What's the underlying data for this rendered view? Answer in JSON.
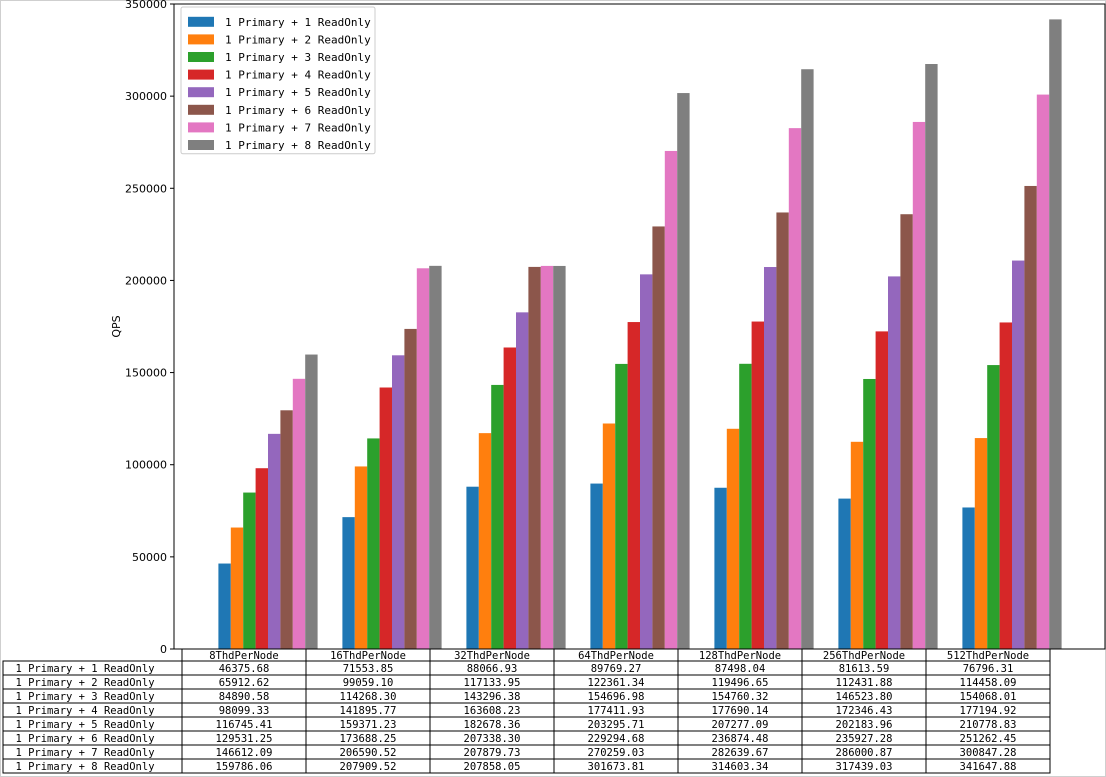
{
  "colors": {
    "series": [
      "#1f77b4",
      "#ff7f0e",
      "#2ca02c",
      "#d62728",
      "#9467bd",
      "#8c564b",
      "#e377c2",
      "#7f7f7f"
    ]
  },
  "chart_data": {
    "type": "bar",
    "title": "",
    "xlabel": "",
    "ylabel": "QPS",
    "ylim": [
      0,
      350000
    ],
    "yticks": [
      "0",
      "50000",
      "100000",
      "150000",
      "200000",
      "250000",
      "300000",
      "350000"
    ],
    "grid": false,
    "legend_position": "top-left",
    "table_below": true,
    "categories": [
      "8ThdPerNode",
      "16ThdPerNode",
      "32ThdPerNode",
      "64ThdPerNode",
      "128ThdPerNode",
      "256ThdPerNode",
      "512ThdPerNode"
    ],
    "series": [
      {
        "name": "1 Primary + 1 ReadOnly",
        "values": [
          46375.68,
          71553.85,
          88066.93,
          89769.27,
          87498.04,
          81613.59,
          76796.31
        ],
        "labels": [
          "46375.68",
          "71553.85",
          "88066.93",
          "89769.27",
          "87498.04",
          "81613.59",
          "76796.31"
        ]
      },
      {
        "name": "1 Primary + 2 ReadOnly",
        "values": [
          65912.62,
          99059.1,
          117133.95,
          122361.34,
          119496.65,
          112431.88,
          114458.09
        ],
        "labels": [
          "65912.62",
          "99059.10",
          "117133.95",
          "122361.34",
          "119496.65",
          "112431.88",
          "114458.09"
        ]
      },
      {
        "name": "1 Primary + 3 ReadOnly",
        "values": [
          84890.58,
          114268.3,
          143296.38,
          154696.98,
          154760.32,
          146523.8,
          154068.01
        ],
        "labels": [
          "84890.58",
          "114268.30",
          "143296.38",
          "154696.98",
          "154760.32",
          "146523.80",
          "154068.01"
        ]
      },
      {
        "name": "1 Primary + 4 ReadOnly",
        "values": [
          98099.33,
          141895.77,
          163608.23,
          177411.93,
          177690.14,
          172346.43,
          177194.92
        ],
        "labels": [
          "98099.33",
          "141895.77",
          "163608.23",
          "177411.93",
          "177690.14",
          "172346.43",
          "177194.92"
        ]
      },
      {
        "name": "1 Primary + 5 ReadOnly",
        "values": [
          116745.41,
          159371.23,
          182678.36,
          203295.71,
          207277.09,
          202183.96,
          210778.83
        ],
        "labels": [
          "116745.41",
          "159371.23",
          "182678.36",
          "203295.71",
          "207277.09",
          "202183.96",
          "210778.83"
        ]
      },
      {
        "name": "1 Primary + 6 ReadOnly",
        "values": [
          129531.25,
          173688.25,
          207338.3,
          229294.68,
          236874.48,
          235927.28,
          251262.45
        ],
        "labels": [
          "129531.25",
          "173688.25",
          "207338.30",
          "229294.68",
          "236874.48",
          "235927.28",
          "251262.45"
        ]
      },
      {
        "name": "1 Primary + 7 ReadOnly",
        "values": [
          146612.09,
          206590.52,
          207879.73,
          270259.03,
          282639.67,
          286000.87,
          300847.28
        ],
        "labels": [
          "146612.09",
          "206590.52",
          "207879.73",
          "270259.03",
          "282639.67",
          "286000.87",
          "300847.28"
        ]
      },
      {
        "name": "1 Primary + 8 ReadOnly",
        "values": [
          159786.06,
          207909.52,
          207858.05,
          301673.81,
          314603.34,
          317439.03,
          341647.88
        ],
        "labels": [
          "159786.06",
          "207909.52",
          "207858.05",
          "301673.81",
          "314603.34",
          "317439.03",
          "341647.88"
        ]
      }
    ]
  }
}
